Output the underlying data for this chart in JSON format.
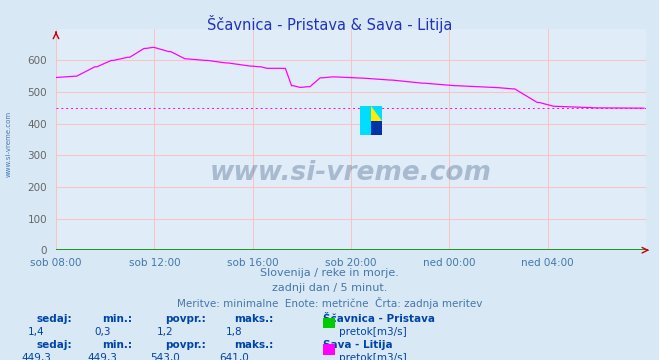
{
  "title": "Ščavnica - Pristava & Sava - Litija",
  "title_color": "#2233bb",
  "fig_bg_color": "#d8e8f5",
  "plot_bg_color": "#e0ecf8",
  "grid_color": "#ffbbbb",
  "ylim": [
    0,
    700
  ],
  "yticks": [
    0,
    100,
    200,
    300,
    400,
    500,
    600
  ],
  "xtick_labels": [
    "sob 08:00",
    "sob 12:00",
    "sob 16:00",
    "sob 20:00",
    "ned 00:00",
    "ned 04:00"
  ],
  "n_points": 288,
  "sava_color": "#ff00ff",
  "scavnica_color": "#00cc00",
  "sava_avg": 449.3,
  "subtitle1": "Slovenija / reke in morje.",
  "subtitle2": "zadnji dan / 5 minut.",
  "subtitle3": "Meritve: minimalne  Enote: metrične  Črta: zadnja meritev",
  "subtitle_color": "#4477aa",
  "stats_label_color": "#0044aa",
  "stats_value_color": "#0044aa",
  "label1": "Ščavnica - Pristava",
  "label2": "Sava - Litija",
  "sublabel": "pretok[m3/s]",
  "row1_sedaj": "1,4",
  "row1_min": "0,3",
  "row1_povpr": "1,2",
  "row1_maks": "1,8",
  "row2_sedaj": "449,3",
  "row2_min": "449,3",
  "row2_povpr": "543,0",
  "row2_maks": "641,0",
  "watermark": "www.si-vreme.com",
  "watermark_color": "#1a3a6a",
  "side_text": "www.si-vreme.com",
  "side_text_color": "#4477bb"
}
